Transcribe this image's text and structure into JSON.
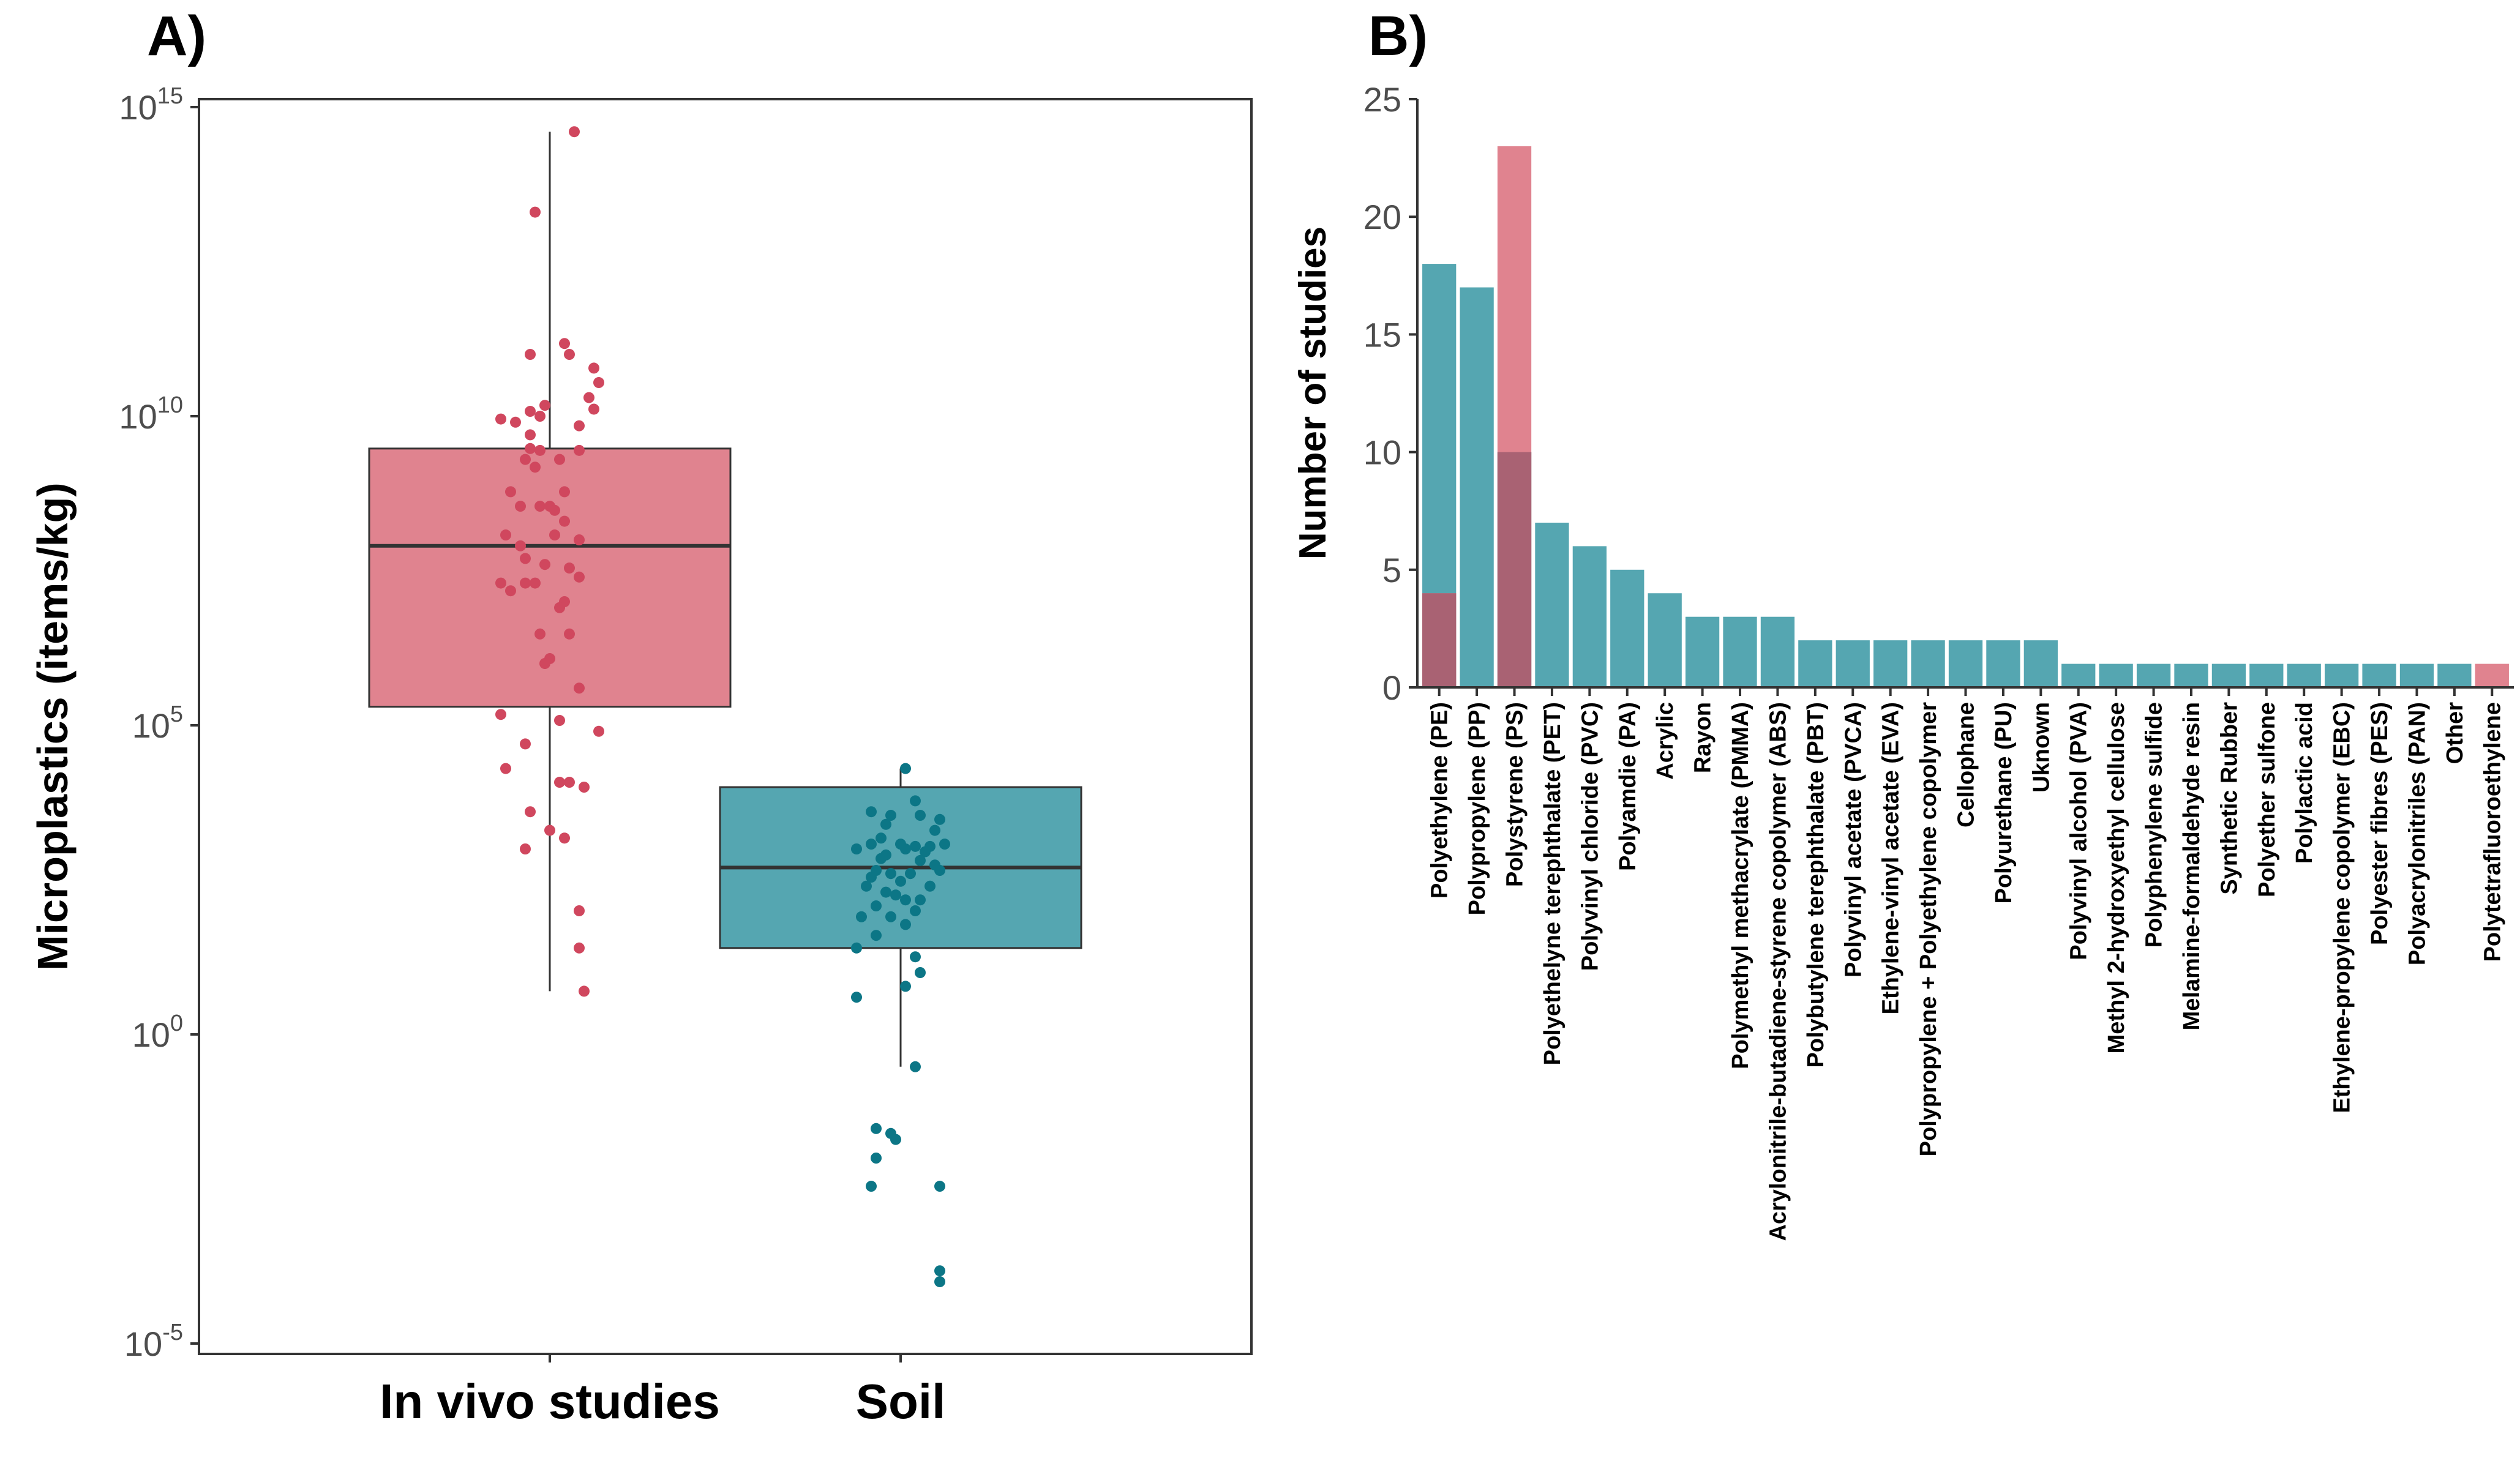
{
  "chart_data": [
    {
      "panel_label": "A)",
      "type": "box",
      "ylabel": "Microplastics (items/kg)",
      "yscale": "log10",
      "ylim": [
        1e-05,
        1000000000000000.0
      ],
      "y_ticks": [
        {
          "base": "10",
          "exp": "-5",
          "value": 1e-05
        },
        {
          "base": "10",
          "exp": "0",
          "value": 1
        },
        {
          "base": "10",
          "exp": "5",
          "value": 100000.0
        },
        {
          "base": "10",
          "exp": "10",
          "value": 10000000000.0
        },
        {
          "base": "10",
          "exp": "15",
          "value": 1000000000000000.0
        }
      ],
      "grid": false,
      "categories": [
        "In vivo studies",
        "Soil"
      ],
      "boxes": [
        {
          "name": "In vivo studies",
          "color": "#E0838F",
          "point_color": "#D0475E",
          "whisker_low": 5,
          "q1": 200000,
          "median": 80000000,
          "q3": 3000000000,
          "whisker_high": 400000000000000.0,
          "points": [
            {
              "x": 0.05,
              "y": 400000000000000.0
            },
            {
              "x": -0.03,
              "y": 20000000000000.0
            },
            {
              "x": 0.03,
              "y": 150000000000.0
            },
            {
              "x": -0.04,
              "y": 100000000000.0
            },
            {
              "x": 0.04,
              "y": 100000000000.0
            },
            {
              "x": 0.09,
              "y": 60000000000.0
            },
            {
              "x": 0.1,
              "y": 35000000000.0
            },
            {
              "x": 0.08,
              "y": 20000000000.0
            },
            {
              "x": -0.01,
              "y": 15000000000.0
            },
            {
              "x": 0.09,
              "y": 13000000000.0
            },
            {
              "x": -0.04,
              "y": 12000000000.0
            },
            {
              "x": -0.02,
              "y": 10000000000.0
            },
            {
              "x": -0.1,
              "y": 9000000000.0
            },
            {
              "x": -0.07,
              "y": 8000000000.0
            },
            {
              "x": 0.06,
              "y": 7000000000.0
            },
            {
              "x": -0.04,
              "y": 5000000000.0
            },
            {
              "x": -0.04,
              "y": 3000000000.0
            },
            {
              "x": -0.02,
              "y": 2800000000.0
            },
            {
              "x": 0.06,
              "y": 2800000000.0
            },
            {
              "x": -0.05,
              "y": 2000000000.0
            },
            {
              "x": 0.02,
              "y": 2000000000.0
            },
            {
              "x": -0.03,
              "y": 1500000000.0
            },
            {
              "x": -0.08,
              "y": 600000000.0
            },
            {
              "x": 0.03,
              "y": 600000000.0
            },
            {
              "x": -0.06,
              "y": 350000000.0
            },
            {
              "x": -0.02,
              "y": 350000000.0
            },
            {
              "x": 0.0,
              "y": 350000000.0
            },
            {
              "x": 0.01,
              "y": 300000000.0
            },
            {
              "x": 0.03,
              "y": 200000000.0
            },
            {
              "x": -0.09,
              "y": 120000000.0
            },
            {
              "x": 0.01,
              "y": 120000000.0
            },
            {
              "x": 0.06,
              "y": 100000000.0
            },
            {
              "x": -0.06,
              "y": 80000000.0
            },
            {
              "x": -0.05,
              "y": 50000000.0
            },
            {
              "x": -0.01,
              "y": 40000000.0
            },
            {
              "x": 0.04,
              "y": 35000000.0
            },
            {
              "x": 0.06,
              "y": 25000000.0
            },
            {
              "x": -0.1,
              "y": 20000000.0
            },
            {
              "x": -0.05,
              "y": 20000000.0
            },
            {
              "x": -0.03,
              "y": 20000000.0
            },
            {
              "x": -0.08,
              "y": 15000000.0
            },
            {
              "x": 0.03,
              "y": 10000000.0
            },
            {
              "x": 0.02,
              "y": 8000000.0
            },
            {
              "x": -0.02,
              "y": 3000000.0
            },
            {
              "x": 0.04,
              "y": 3000000.0
            },
            {
              "x": 0.0,
              "y": 1200000.0
            },
            {
              "x": -0.01,
              "y": 1000000.0
            },
            {
              "x": 0.06,
              "y": 400000.0
            },
            {
              "x": -0.1,
              "y": 150000.0
            },
            {
              "x": 0.02,
              "y": 120000.0
            },
            {
              "x": 0.1,
              "y": 80000.0
            },
            {
              "x": -0.05,
              "y": 50000.0
            },
            {
              "x": -0.09,
              "y": 20000.0
            },
            {
              "x": 0.04,
              "y": 12000.0
            },
            {
              "x": 0.02,
              "y": 12000.0
            },
            {
              "x": 0.07,
              "y": 10000.0
            },
            {
              "x": -0.04,
              "y": 4000.0
            },
            {
              "x": 0.0,
              "y": 2000.0
            },
            {
              "x": 0.03,
              "y": 1500.0
            },
            {
              "x": -0.05,
              "y": 1000.0
            },
            {
              "x": 0.06,
              "y": 100
            },
            {
              "x": 0.06,
              "y": 25
            },
            {
              "x": 0.07,
              "y": 5
            }
          ]
        },
        {
          "name": "Soil",
          "color": "#55A6B1",
          "point_color": "#0C7686",
          "whisker_low": 0.3,
          "q1": 25,
          "median": 500,
          "q3": 10000.0,
          "whisker_high": 20000.0,
          "points": [
            {
              "x": 0.01,
              "y": 20000.0
            },
            {
              "x": 0.03,
              "y": 6000.0
            },
            {
              "x": -0.06,
              "y": 4000.0
            },
            {
              "x": -0.02,
              "y": 3500.0
            },
            {
              "x": 0.04,
              "y": 3500.0
            },
            {
              "x": 0.08,
              "y": 3000.0
            },
            {
              "x": -0.03,
              "y": 2500.0
            },
            {
              "x": 0.07,
              "y": 2000.0
            },
            {
              "x": -0.04,
              "y": 1500.0
            },
            {
              "x": -0.06,
              "y": 1200.0
            },
            {
              "x": 0.0,
              "y": 1200.0
            },
            {
              "x": 0.03,
              "y": 1100.0
            },
            {
              "x": 0.06,
              "y": 1100.0
            },
            {
              "x": 0.09,
              "y": 1200.0
            },
            {
              "x": -0.09,
              "y": 1000.0
            },
            {
              "x": 0.01,
              "y": 1000.0
            },
            {
              "x": 0.05,
              "y": 900
            },
            {
              "x": -0.03,
              "y": 800
            },
            {
              "x": -0.04,
              "y": 700
            },
            {
              "x": 0.04,
              "y": 650
            },
            {
              "x": -0.05,
              "y": 450
            },
            {
              "x": 0.07,
              "y": 550
            },
            {
              "x": 0.08,
              "y": 450
            },
            {
              "x": -0.02,
              "y": 400
            },
            {
              "x": 0.02,
              "y": 400
            },
            {
              "x": -0.06,
              "y": 350
            },
            {
              "x": 0.0,
              "y": 300
            },
            {
              "x": -0.07,
              "y": 250
            },
            {
              "x": 0.06,
              "y": 250
            },
            {
              "x": -0.03,
              "y": 200
            },
            {
              "x": -0.01,
              "y": 180
            },
            {
              "x": 0.01,
              "y": 150
            },
            {
              "x": 0.04,
              "y": 150
            },
            {
              "x": -0.05,
              "y": 120
            },
            {
              "x": 0.03,
              "y": 100
            },
            {
              "x": -0.08,
              "y": 80
            },
            {
              "x": -0.02,
              "y": 80
            },
            {
              "x": 0.01,
              "y": 60
            },
            {
              "x": -0.05,
              "y": 40
            },
            {
              "x": -0.09,
              "y": 25
            },
            {
              "x": 0.03,
              "y": 18
            },
            {
              "x": 0.04,
              "y": 10
            },
            {
              "x": 0.01,
              "y": 6
            },
            {
              "x": -0.09,
              "y": 4
            },
            {
              "x": 0.03,
              "y": 0.3
            },
            {
              "x": -0.05,
              "y": 0.03
            },
            {
              "x": -0.02,
              "y": 0.025
            },
            {
              "x": -0.01,
              "y": 0.02
            },
            {
              "x": -0.05,
              "y": 0.01
            },
            {
              "x": -0.06,
              "y": 0.0035
            },
            {
              "x": 0.08,
              "y": 0.0035
            },
            {
              "x": 0.08,
              "y": 0.00015
            },
            {
              "x": 0.08,
              "y": 0.0001
            }
          ]
        }
      ]
    },
    {
      "panel_label": "B)",
      "type": "bar",
      "ylabel": "Number of studies",
      "ylim": [
        0,
        25
      ],
      "y_ticks": [
        "0",
        "5",
        "10",
        "15",
        "20",
        "25"
      ],
      "grid": false,
      "series_colors": {
        "soil": "#55A6B1",
        "in_vivo": "#E0838F",
        "overlap": "#A96273"
      },
      "categories": [
        "Polyethylene (PE)",
        "Polypropylene (PP)",
        "Polystyrene (PS)",
        "Polyethelyne terephthalate (PET)",
        "Polyvinyl chloride (PVC)",
        "Polyamdie (PA)",
        "Acrylic",
        "Rayon",
        "Polymethyl methacrylate (PMMA)",
        "Acrylonitrile-butadiene-styrene copolymer (ABS)",
        "Polybutylene terephthalate (PBT)",
        "Polyvinyl acetate (PVCA)",
        "Ethylene-vinyl acetate (EVA)",
        "Polypropylene + Polyethylene copolymer",
        "Cellophane",
        "Polyurethane (PU)",
        "Uknown",
        "Polyvinyl alcohol (PVA)",
        "Methyl 2-hydroxyethyl cellulose",
        "Polyphenylene sulfide",
        "Melamine-formaldehyde resin",
        "Synthetic Rubber",
        "Polyether sulfone",
        "Polylactic acid",
        "Ethylene-propylene copolymer (EBC)",
        "Polyester fibres (PES)",
        "Polyacrylonitriles (PAN)",
        "Other",
        "Polytetrafluoroethylene"
      ],
      "soil_values": [
        18,
        17,
        10,
        7,
        6,
        5,
        4,
        3,
        3,
        3,
        2,
        2,
        2,
        2,
        2,
        2,
        2,
        1,
        1,
        1,
        1,
        1,
        1,
        1,
        1,
        1,
        1,
        1,
        0
      ],
      "in_vivo_values": [
        4,
        0,
        23,
        0,
        0,
        0,
        0,
        0,
        0,
        0,
        0,
        0,
        0,
        0,
        0,
        0,
        0,
        0,
        0,
        0,
        0,
        0,
        0,
        0,
        0,
        0,
        0,
        0,
        1
      ]
    }
  ]
}
